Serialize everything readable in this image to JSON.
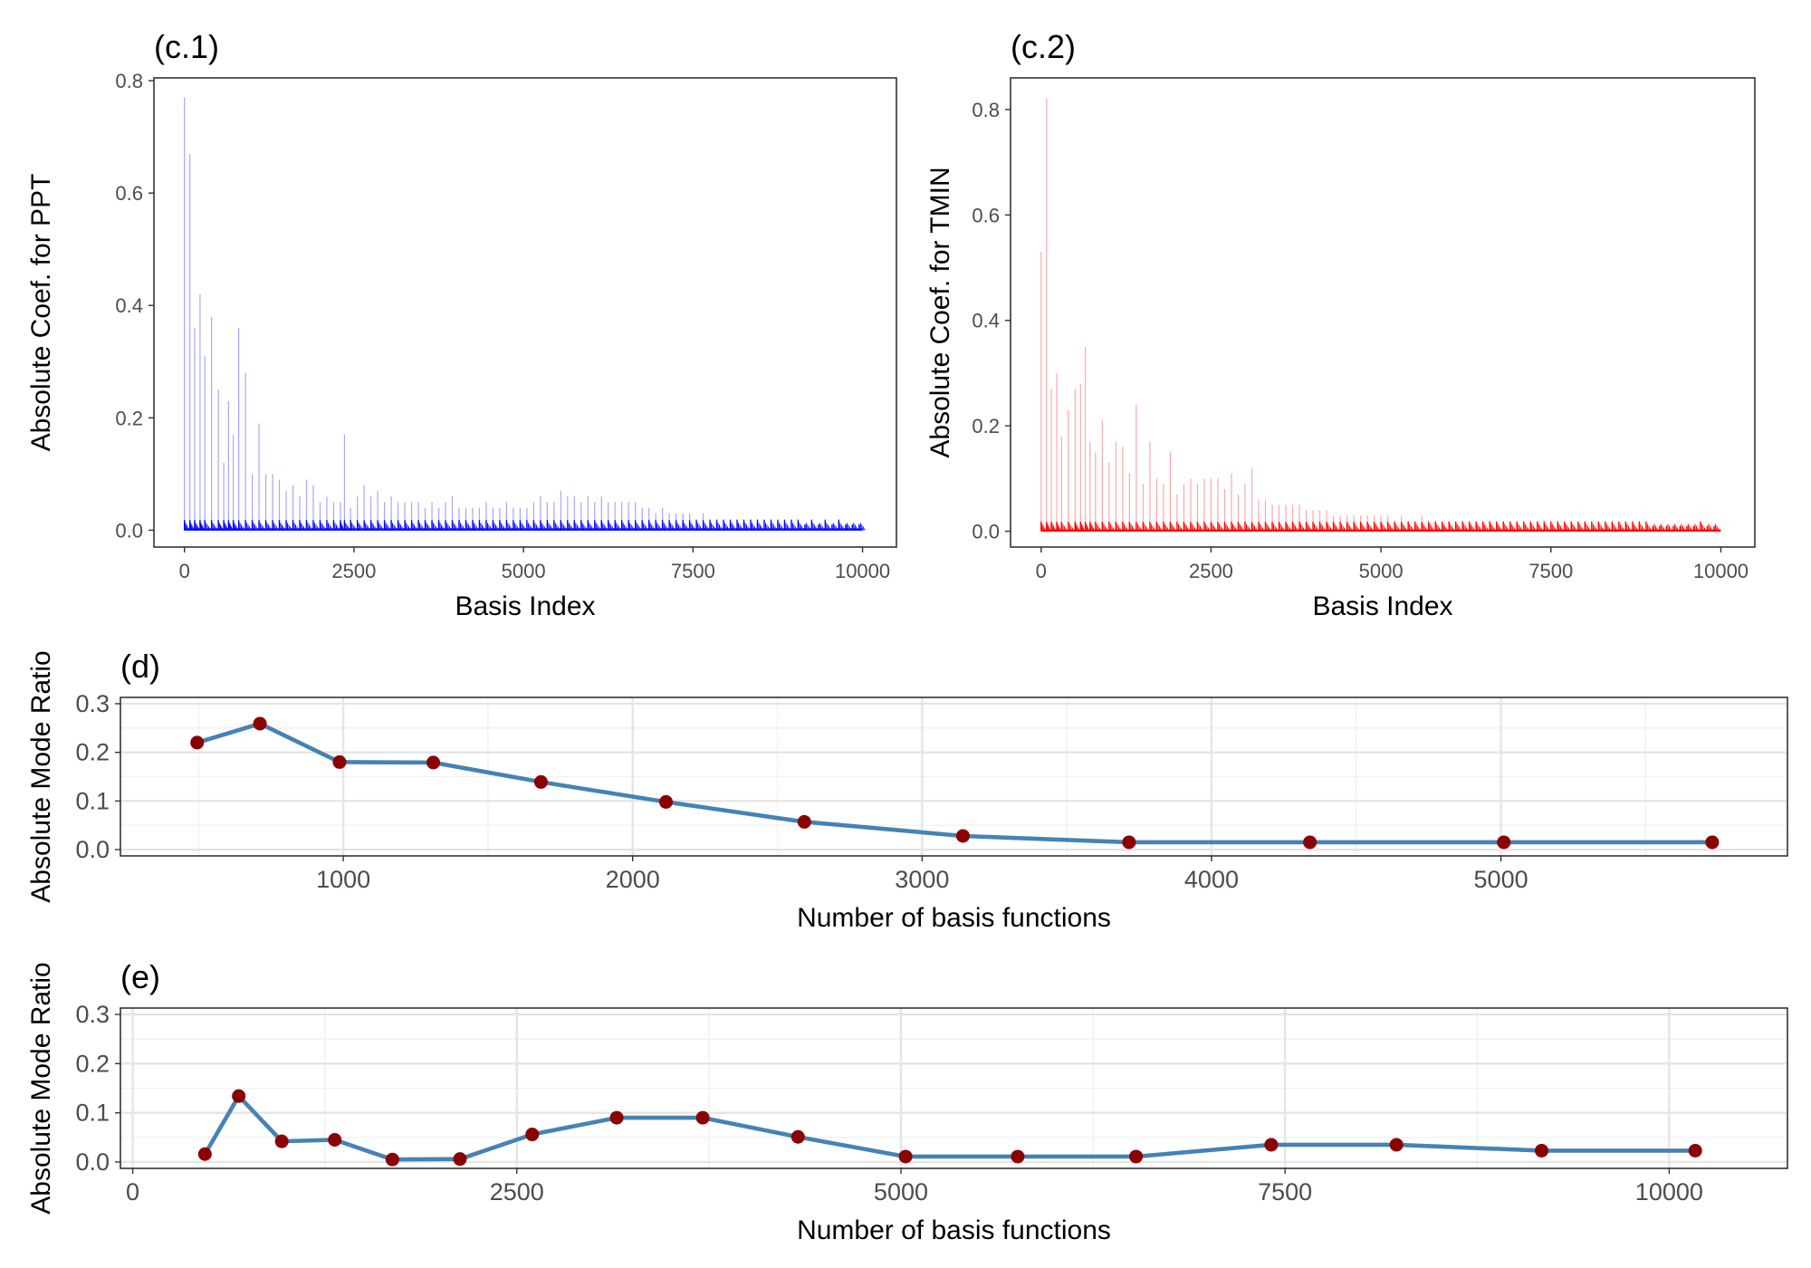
{
  "chart_data": [
    {
      "id": "c1",
      "panel_label": "(c.1)",
      "type": "bar",
      "xlabel": "Basis Index",
      "ylabel": "Absolute Coef. for PPT",
      "xlim": [
        -450,
        10500
      ],
      "ylim": [
        -0.03,
        0.805
      ],
      "xticks": [
        0,
        2500,
        5000,
        7500,
        10000
      ],
      "xtick_labels": [
        "0",
        "2500",
        "5000",
        "7500",
        "10000"
      ],
      "yticks": [
        0.0,
        0.2,
        0.4,
        0.6,
        0.8
      ],
      "ytick_labels": [
        "0.0",
        "0.2",
        "0.4",
        "0.6",
        "0.8"
      ],
      "color": "#0000ff",
      "grid": false,
      "spikes": {
        "x": [
          0,
          80,
          150,
          230,
          300,
          400,
          500,
          580,
          650,
          720,
          800,
          900,
          1000,
          1100,
          1200,
          1300,
          1400,
          1500,
          1600,
          1700,
          1800,
          1900,
          2000,
          2100,
          2200,
          2300,
          2360,
          2450,
          2550,
          2650,
          2750,
          2850,
          2950,
          3050,
          3150,
          3250,
          3350,
          3450,
          3550,
          3650,
          3750,
          3850,
          3950,
          4050,
          4150,
          4250,
          4350,
          4450,
          4550,
          4650,
          4750,
          4850,
          4950,
          5050,
          5150,
          5250,
          5350,
          5450,
          5550,
          5650,
          5750,
          5850,
          5950,
          6050,
          6150,
          6250,
          6350,
          6450,
          6550,
          6650,
          6750,
          6850,
          6950,
          7050,
          7150,
          7250,
          7350,
          7450,
          7550,
          7650,
          7750,
          7850,
          7950,
          8050,
          8150,
          8250,
          8350,
          8450,
          8550,
          8650,
          8750,
          8850,
          8950,
          9050,
          9150,
          9250,
          9350,
          9450,
          9550,
          9650,
          9750,
          9850,
          9950
        ],
        "y": [
          0.77,
          0.67,
          0.36,
          0.42,
          0.31,
          0.38,
          0.25,
          0.12,
          0.23,
          0.17,
          0.36,
          0.28,
          0.1,
          0.19,
          0.1,
          0.1,
          0.09,
          0.07,
          0.08,
          0.06,
          0.09,
          0.08,
          0.05,
          0.06,
          0.05,
          0.05,
          0.17,
          0.04,
          0.06,
          0.08,
          0.06,
          0.07,
          0.05,
          0.06,
          0.05,
          0.05,
          0.05,
          0.05,
          0.04,
          0.05,
          0.04,
          0.05,
          0.06,
          0.04,
          0.04,
          0.04,
          0.04,
          0.05,
          0.04,
          0.04,
          0.05,
          0.04,
          0.04,
          0.04,
          0.05,
          0.06,
          0.05,
          0.05,
          0.07,
          0.06,
          0.06,
          0.05,
          0.06,
          0.05,
          0.06,
          0.05,
          0.05,
          0.05,
          0.05,
          0.05,
          0.04,
          0.04,
          0.03,
          0.04,
          0.03,
          0.03,
          0.03,
          0.03,
          0.02,
          0.03,
          0.02,
          0.02,
          0.02,
          0.02,
          0.02,
          0.02,
          0.02,
          0.02,
          0.02,
          0.02,
          0.02,
          0.02,
          0.02,
          0.02,
          0.01,
          0.02,
          0.01,
          0.02,
          0.01,
          0.02,
          0.01,
          0.01,
          0.01
        ]
      }
    },
    {
      "id": "c2",
      "panel_label": "(c.2)",
      "type": "bar",
      "xlabel": "Basis Index",
      "ylabel": "Absolute Coef. for TMIN",
      "xlim": [
        -450,
        10500
      ],
      "ylim": [
        -0.03,
        0.86
      ],
      "xticks": [
        0,
        2500,
        5000,
        7500,
        10000
      ],
      "xtick_labels": [
        "0",
        "2500",
        "5000",
        "7500",
        "10000"
      ],
      "yticks": [
        0.0,
        0.2,
        0.4,
        0.6,
        0.8
      ],
      "ytick_labels": [
        "0.0",
        "0.2",
        "0.4",
        "0.6",
        "0.8"
      ],
      "color": "#ff0000",
      "grid": false,
      "spikes": {
        "x": [
          0,
          80,
          150,
          230,
          300,
          400,
          500,
          580,
          650,
          720,
          800,
          900,
          1000,
          1100,
          1200,
          1300,
          1400,
          1500,
          1600,
          1700,
          1800,
          1900,
          2000,
          2100,
          2200,
          2300,
          2400,
          2500,
          2600,
          2700,
          2800,
          2900,
          3000,
          3100,
          3200,
          3300,
          3400,
          3500,
          3600,
          3700,
          3800,
          3900,
          4000,
          4100,
          4200,
          4300,
          4400,
          4500,
          4600,
          4700,
          4800,
          4900,
          5000,
          5100,
          5200,
          5300,
          5400,
          5500,
          5600,
          5700,
          5800,
          5900,
          6000,
          6100,
          6200,
          6300,
          6400,
          6500,
          6600,
          6700,
          6800,
          6900,
          7000,
          7100,
          7200,
          7300,
          7400,
          7500,
          7600,
          7700,
          7800,
          7900,
          8000,
          8100,
          8200,
          8300,
          8400,
          8500,
          8600,
          8700,
          8800,
          8900,
          9000,
          9100,
          9200,
          9300,
          9400,
          9500,
          9600,
          9700,
          9800,
          9900
        ],
        "y": [
          0.53,
          0.82,
          0.27,
          0.3,
          0.18,
          0.23,
          0.27,
          0.28,
          0.35,
          0.17,
          0.15,
          0.21,
          0.13,
          0.17,
          0.16,
          0.11,
          0.24,
          0.09,
          0.17,
          0.1,
          0.09,
          0.15,
          0.07,
          0.09,
          0.1,
          0.09,
          0.1,
          0.1,
          0.1,
          0.08,
          0.11,
          0.07,
          0.09,
          0.12,
          0.06,
          0.06,
          0.05,
          0.05,
          0.05,
          0.05,
          0.05,
          0.04,
          0.04,
          0.04,
          0.04,
          0.03,
          0.03,
          0.03,
          0.03,
          0.03,
          0.03,
          0.03,
          0.03,
          0.03,
          0.02,
          0.03,
          0.02,
          0.02,
          0.03,
          0.02,
          0.02,
          0.02,
          0.02,
          0.02,
          0.02,
          0.02,
          0.02,
          0.02,
          0.02,
          0.02,
          0.02,
          0.02,
          0.02,
          0.02,
          0.02,
          0.02,
          0.02,
          0.02,
          0.02,
          0.02,
          0.02,
          0.02,
          0.02,
          0.02,
          0.02,
          0.02,
          0.02,
          0.02,
          0.02,
          0.02,
          0.02,
          0.02,
          0.01,
          0.01,
          0.01,
          0.01,
          0.01,
          0.01,
          0.01,
          0.02,
          0.01,
          0.01
        ]
      }
    },
    {
      "id": "d",
      "panel_label": "(d)",
      "type": "line",
      "xlabel": "Number of basis functions",
      "ylabel": "Absolute Mode Ratio",
      "xlim": [
        230,
        5990
      ],
      "ylim": [
        -0.013,
        0.313
      ],
      "xticks": [
        1000,
        2000,
        3000,
        4000,
        5000
      ],
      "xtick_labels": [
        "1000",
        "2000",
        "3000",
        "4000",
        "5000"
      ],
      "yticks": [
        0.0,
        0.1,
        0.2,
        0.3
      ],
      "ytick_labels": [
        "0.0",
        "0.1",
        "0.2",
        "0.3"
      ],
      "grid": true,
      "line_color": "#4682b4",
      "point_color": "#8b0000",
      "x": [
        495,
        712,
        987,
        1311,
        1683,
        2115,
        2593,
        3141,
        3715,
        4340,
        5010,
        5730
      ],
      "y": [
        0.22,
        0.259,
        0.18,
        0.179,
        0.139,
        0.098,
        0.057,
        0.028,
        0.015,
        0.015,
        0.015,
        0.015
      ]
    },
    {
      "id": "e",
      "panel_label": "(e)",
      "type": "line",
      "xlabel": "Number of basis functions",
      "ylabel": "Absolute Mode Ratio",
      "xlim": [
        -80,
        10770
      ],
      "ylim": [
        -0.013,
        0.313
      ],
      "xticks": [
        0,
        2500,
        5000,
        7500,
        10000
      ],
      "xtick_labels": [
        "0",
        "2500",
        "5000",
        "7500",
        "10000"
      ],
      "yticks": [
        0.0,
        0.1,
        0.2,
        0.3
      ],
      "ytick_labels": [
        "0.0",
        "0.1",
        "0.2",
        "0.3"
      ],
      "grid": true,
      "line_color": "#4682b4",
      "point_color": "#8b0000",
      "x": [
        470,
        690,
        970,
        1315,
        1690,
        2130,
        2600,
        3150,
        3710,
        4330,
        5030,
        5760,
        6530,
        7410,
        8225,
        9170,
        10170
      ],
      "y": [
        0.016,
        0.134,
        0.042,
        0.045,
        0.005,
        0.006,
        0.056,
        0.09,
        0.09,
        0.051,
        0.011,
        0.011,
        0.011,
        0.035,
        0.035,
        0.023,
        0.023
      ]
    }
  ]
}
